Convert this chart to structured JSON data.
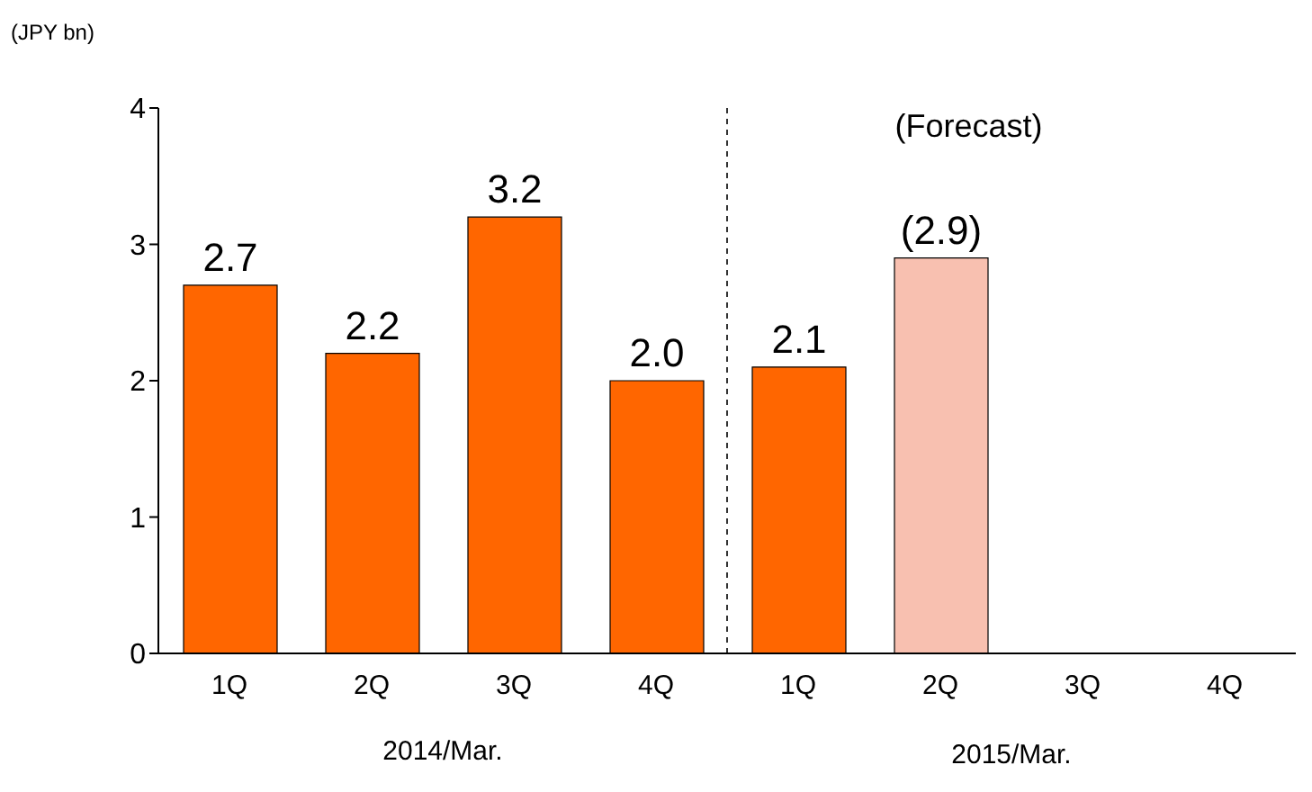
{
  "chart_data": {
    "type": "bar",
    "ylabel": "(JPY bn)",
    "categories": [
      "1Q",
      "2Q",
      "3Q",
      "4Q",
      "1Q",
      "2Q",
      "3Q",
      "4Q"
    ],
    "values": [
      2.7,
      2.2,
      3.2,
      2.0,
      2.1,
      2.9,
      null,
      null
    ],
    "colors": [
      "#ff6600",
      "#ff6600",
      "#ff6600",
      "#ff6600",
      "#ff6600",
      "#f8c0b0",
      "#ff6600",
      "#ff6600"
    ],
    "value_labels": [
      "2.7",
      "2.2",
      "3.2",
      "2.0",
      "2.1",
      "(2.9)",
      null,
      null
    ],
    "ylim": [
      0,
      4
    ],
    "yticks": [
      0,
      1,
      2,
      3,
      4
    ],
    "grid": false,
    "legend": false,
    "annotations": [
      "(Forecast)",
      "2014/Mar.",
      "2015/Mar."
    ]
  }
}
